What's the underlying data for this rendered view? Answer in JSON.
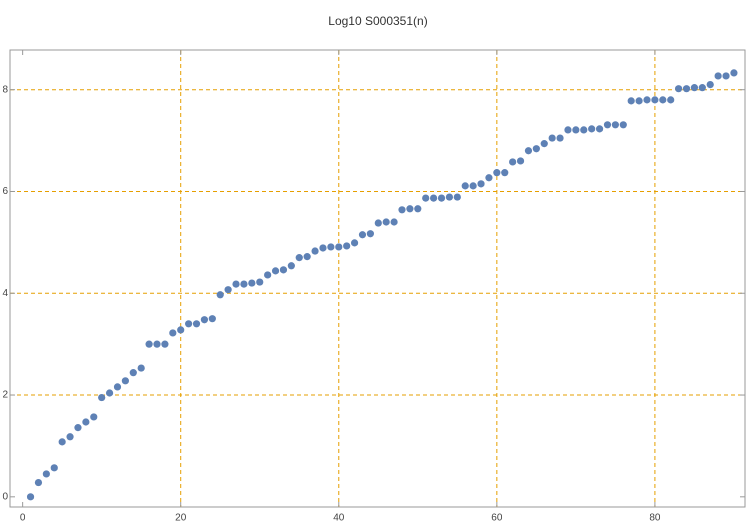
{
  "chart_data": {
    "type": "scatter",
    "title": "Log10 S000351(n)",
    "x": [
      1,
      2,
      3,
      4,
      5,
      6,
      7,
      8,
      9,
      10,
      11,
      12,
      13,
      14,
      15,
      16,
      17,
      18,
      19,
      20,
      21,
      22,
      23,
      24,
      25,
      26,
      27,
      28,
      29,
      30,
      31,
      32,
      33,
      34,
      35,
      36,
      37,
      38,
      39,
      40,
      41,
      42,
      43,
      44,
      45,
      46,
      47,
      48,
      49,
      50,
      51,
      52,
      53,
      54,
      55,
      56,
      57,
      58,
      59,
      60,
      61,
      62,
      63,
      64,
      65,
      66,
      67,
      68,
      69,
      70,
      71,
      72,
      73,
      74,
      75,
      76,
      77,
      78,
      79,
      80,
      81,
      82,
      83,
      84,
      85,
      86,
      87,
      88,
      89,
      90
    ],
    "series": [
      {
        "color": "#5e81b5",
        "values": [
          0,
          0.28,
          0.45,
          0.57,
          1.08,
          1.18,
          1.36,
          1.47,
          1.57,
          1.95,
          2.04,
          2.16,
          2.28,
          2.44,
          2.53,
          3.0,
          3.0,
          3.0,
          3.22,
          3.28,
          3.4,
          3.4,
          3.48,
          3.5,
          3.97,
          4.07,
          4.18,
          4.18,
          4.2,
          4.22,
          4.36,
          4.44,
          4.46,
          4.54,
          4.7,
          4.72,
          4.83,
          4.89,
          4.91,
          4.91,
          4.93,
          4.99,
          5.15,
          5.17,
          5.38,
          5.4,
          5.4,
          5.64,
          5.66,
          5.66,
          5.87,
          5.87,
          5.87,
          5.89,
          5.89,
          6.11,
          6.11,
          6.15,
          6.27,
          6.37,
          6.37,
          6.58,
          6.6,
          6.8,
          6.84,
          6.94,
          7.05,
          7.05,
          7.21,
          7.21,
          7.21,
          7.23,
          7.23,
          7.31,
          7.31,
          7.31,
          7.78,
          7.78,
          7.8,
          7.8,
          7.8,
          7.8,
          8.02,
          8.02,
          8.04,
          8.04,
          8.1,
          8.27,
          8.27,
          8.33
        ]
      }
    ],
    "xlim": [
      -1.6,
      91.4
    ],
    "ylim": [
      -0.2,
      8.78
    ],
    "xticks": [
      0,
      20,
      40,
      60,
      80
    ],
    "yticks": [
      0,
      2,
      4,
      6,
      8
    ],
    "xgrid": [
      20,
      40,
      60,
      80
    ],
    "ygrid": [
      2,
      4,
      6,
      8
    ],
    "grid_color": "#e69f00"
  }
}
